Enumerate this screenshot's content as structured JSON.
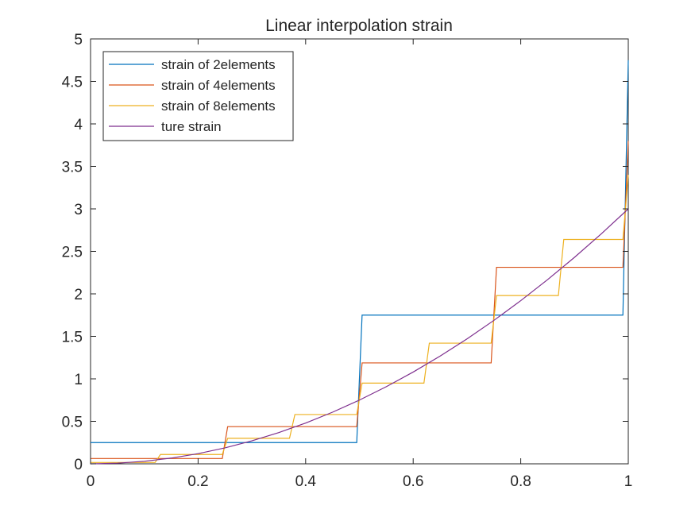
{
  "chart_data": {
    "type": "line",
    "title": "Linear interpolation strain",
    "xlabel": "",
    "ylabel": "",
    "xlim": [
      0,
      1
    ],
    "ylim": [
      0,
      5
    ],
    "xticks": [
      0,
      0.2,
      0.4,
      0.6,
      0.8,
      1
    ],
    "xtick_labels": [
      "0",
      "0.2",
      "0.4",
      "0.6",
      "0.8",
      "1"
    ],
    "yticks": [
      0,
      0.5,
      1,
      1.5,
      2,
      2.5,
      3,
      3.5,
      4,
      4.5,
      5
    ],
    "ytick_labels": [
      "0",
      "0.5",
      "1",
      "1.5",
      "2",
      "2.5",
      "3",
      "3.5",
      "4",
      "4.5",
      "5"
    ],
    "grid": false,
    "legend_position": "top-left",
    "series": [
      {
        "name": "strain of 2elements",
        "color": "#0072BD",
        "x": [
          0,
          0.495,
          0.505,
          0.99,
          1.0
        ],
        "y": [
          0.25,
          0.25,
          1.75,
          1.75,
          4.75
        ]
      },
      {
        "name": "strain of 4elements",
        "color": "#D95319",
        "x": [
          0,
          0.245,
          0.255,
          0.495,
          0.505,
          0.745,
          0.755,
          0.99,
          1.0
        ],
        "y": [
          0.0625,
          0.0625,
          0.4375,
          0.4375,
          1.1875,
          1.1875,
          2.3125,
          2.3125,
          3.8
        ]
      },
      {
        "name": "strain of 8elements",
        "color": "#EDB120",
        "x": [
          0,
          0.12,
          0.13,
          0.245,
          0.255,
          0.37,
          0.38,
          0.495,
          0.505,
          0.62,
          0.63,
          0.745,
          0.755,
          0.87,
          0.88,
          0.99,
          1.0
        ],
        "y": [
          0.016,
          0.016,
          0.11,
          0.11,
          0.3,
          0.3,
          0.58,
          0.58,
          0.95,
          0.95,
          1.42,
          1.42,
          1.98,
          1.98,
          2.64,
          2.64,
          3.4
        ]
      },
      {
        "name": "ture strain",
        "color": "#7E2F8E",
        "x": [
          0,
          0.05,
          0.1,
          0.15,
          0.2,
          0.25,
          0.3,
          0.35,
          0.4,
          0.45,
          0.5,
          0.55,
          0.6,
          0.65,
          0.7,
          0.75,
          0.8,
          0.85,
          0.9,
          0.95,
          1.0
        ],
        "y": [
          0,
          0.0075,
          0.03,
          0.0675,
          0.12,
          0.1875,
          0.27,
          0.3675,
          0.48,
          0.6075,
          0.75,
          0.9075,
          1.08,
          1.2675,
          1.47,
          1.6875,
          1.92,
          2.1675,
          2.43,
          2.7075,
          3.0
        ]
      }
    ]
  }
}
